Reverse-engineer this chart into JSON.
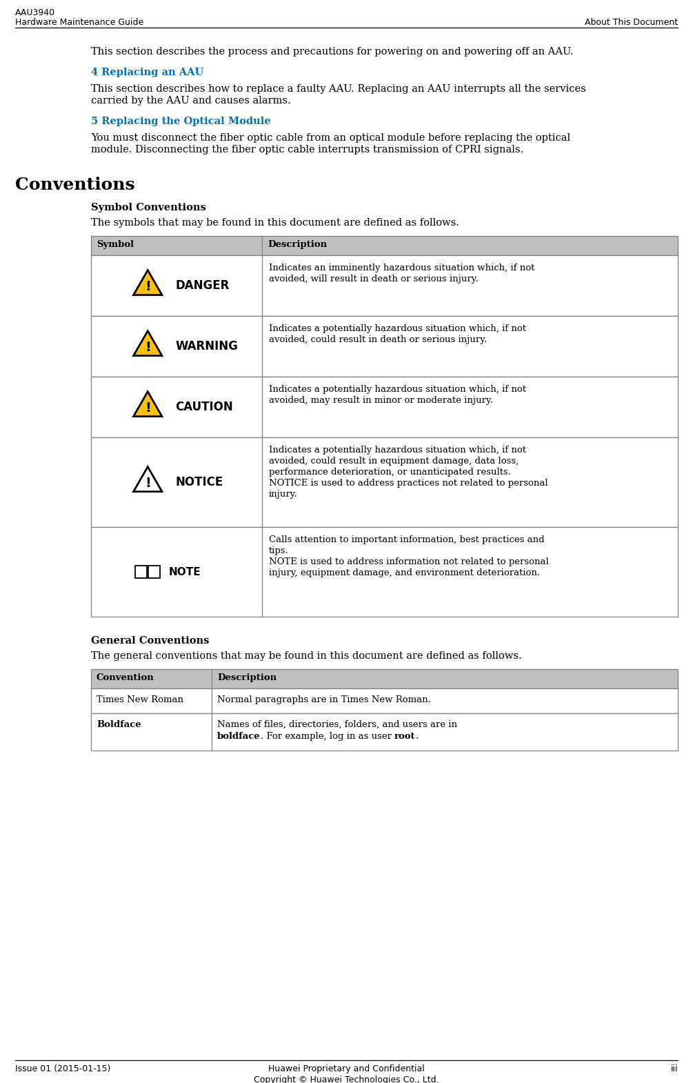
{
  "page_bg": "#ffffff",
  "header_left1": "AAU3940",
  "header_left2": "Hardware Maintenance Guide",
  "header_right": "About This Document",
  "footer_left": "Issue 01 (2015-01-15)",
  "footer_center1": "Huawei Proprietary and Confidential",
  "footer_center2": "Copyright © Huawei Technologies Co., Ltd.",
  "footer_right": "iii",
  "para1": "This section describes the process and precautions for powering on and powering off an AAU.",
  "link1": "4 Replacing an AAU",
  "para2_line1": "This section describes how to replace a faulty AAU. Replacing an AAU interrupts all the services",
  "para2_line2": "carried by the AAU and causes alarms.",
  "link2": "5 Replacing the Optical Module",
  "para3_line1": "You must disconnect the fiber optic cable from an optical module before replacing the optical",
  "para3_line2": "module. Disconnecting the fiber optic cable interrupts transmission of CPRI signals.",
  "section_title": "Conventions",
  "subsection1": "Symbol Conventions",
  "subsec1_intro": "The symbols that may be found in this document are defined as follows.",
  "table1_headers": [
    "Symbol",
    "Description"
  ],
  "table1_rows": [
    {
      "symbol_type": "danger",
      "symbol_label": "DANGER",
      "desc": "Indicates an imminently hazardous situation which, if not\navoided, will result in death or serious injury."
    },
    {
      "symbol_type": "warning",
      "symbol_label": "WARNING",
      "desc": "Indicates a potentially hazardous situation which, if not\navoided, could result in death or serious injury."
    },
    {
      "symbol_type": "caution",
      "symbol_label": "CAUTION",
      "desc": "Indicates a potentially hazardous situation which, if not\navoided, may result in minor or moderate injury."
    },
    {
      "symbol_type": "notice",
      "symbol_label": "NOTICE",
      "desc": "Indicates a potentially hazardous situation which, if not\navoided, could result in equipment damage, data loss,\nperformance deterioration, or unanticipated results.\nNOTICE is used to address practices not related to personal\ninjury."
    },
    {
      "symbol_type": "note",
      "symbol_label": "NOTE",
      "desc": "Calls attention to important information, best practices and\ntips.\nNOTE is used to address information not related to personal\ninjury, equipment damage, and environment deterioration."
    }
  ],
  "subsection2": "General Conventions",
  "subsec2_intro": "The general conventions that may be found in this document are defined as follows.",
  "table2_headers": [
    "Convention",
    "Description"
  ],
  "table2_rows": [
    {
      "convention": "Times New Roman",
      "bold": false,
      "desc": "Normal paragraphs are in Times New Roman."
    },
    {
      "convention": "Boldface",
      "bold": true,
      "desc_parts": [
        {
          "text": "Names of files, directories, folders, and users are in\n",
          "bold": false
        },
        {
          "text": "boldface",
          "bold": true
        },
        {
          "text": ". For example, log in as user ",
          "bold": false
        },
        {
          "text": "root",
          "bold": true
        },
        {
          "text": ".",
          "bold": false
        }
      ]
    }
  ],
  "link_color": "#0070C0",
  "table_header_bg": "#C0C0C0",
  "table_border_color": "#808080",
  "danger_triangle_fill": "#FFC000",
  "notice_triangle_fill": "#ffffff",
  "text_color": "#000000",
  "body_text_size": 10.5,
  "table_text_size": 9.5,
  "header_text_size": 9.0,
  "footer_text_size": 9.0,
  "section_title_size": 18,
  "subsection_size": 10.5,
  "link_size": 10.5
}
